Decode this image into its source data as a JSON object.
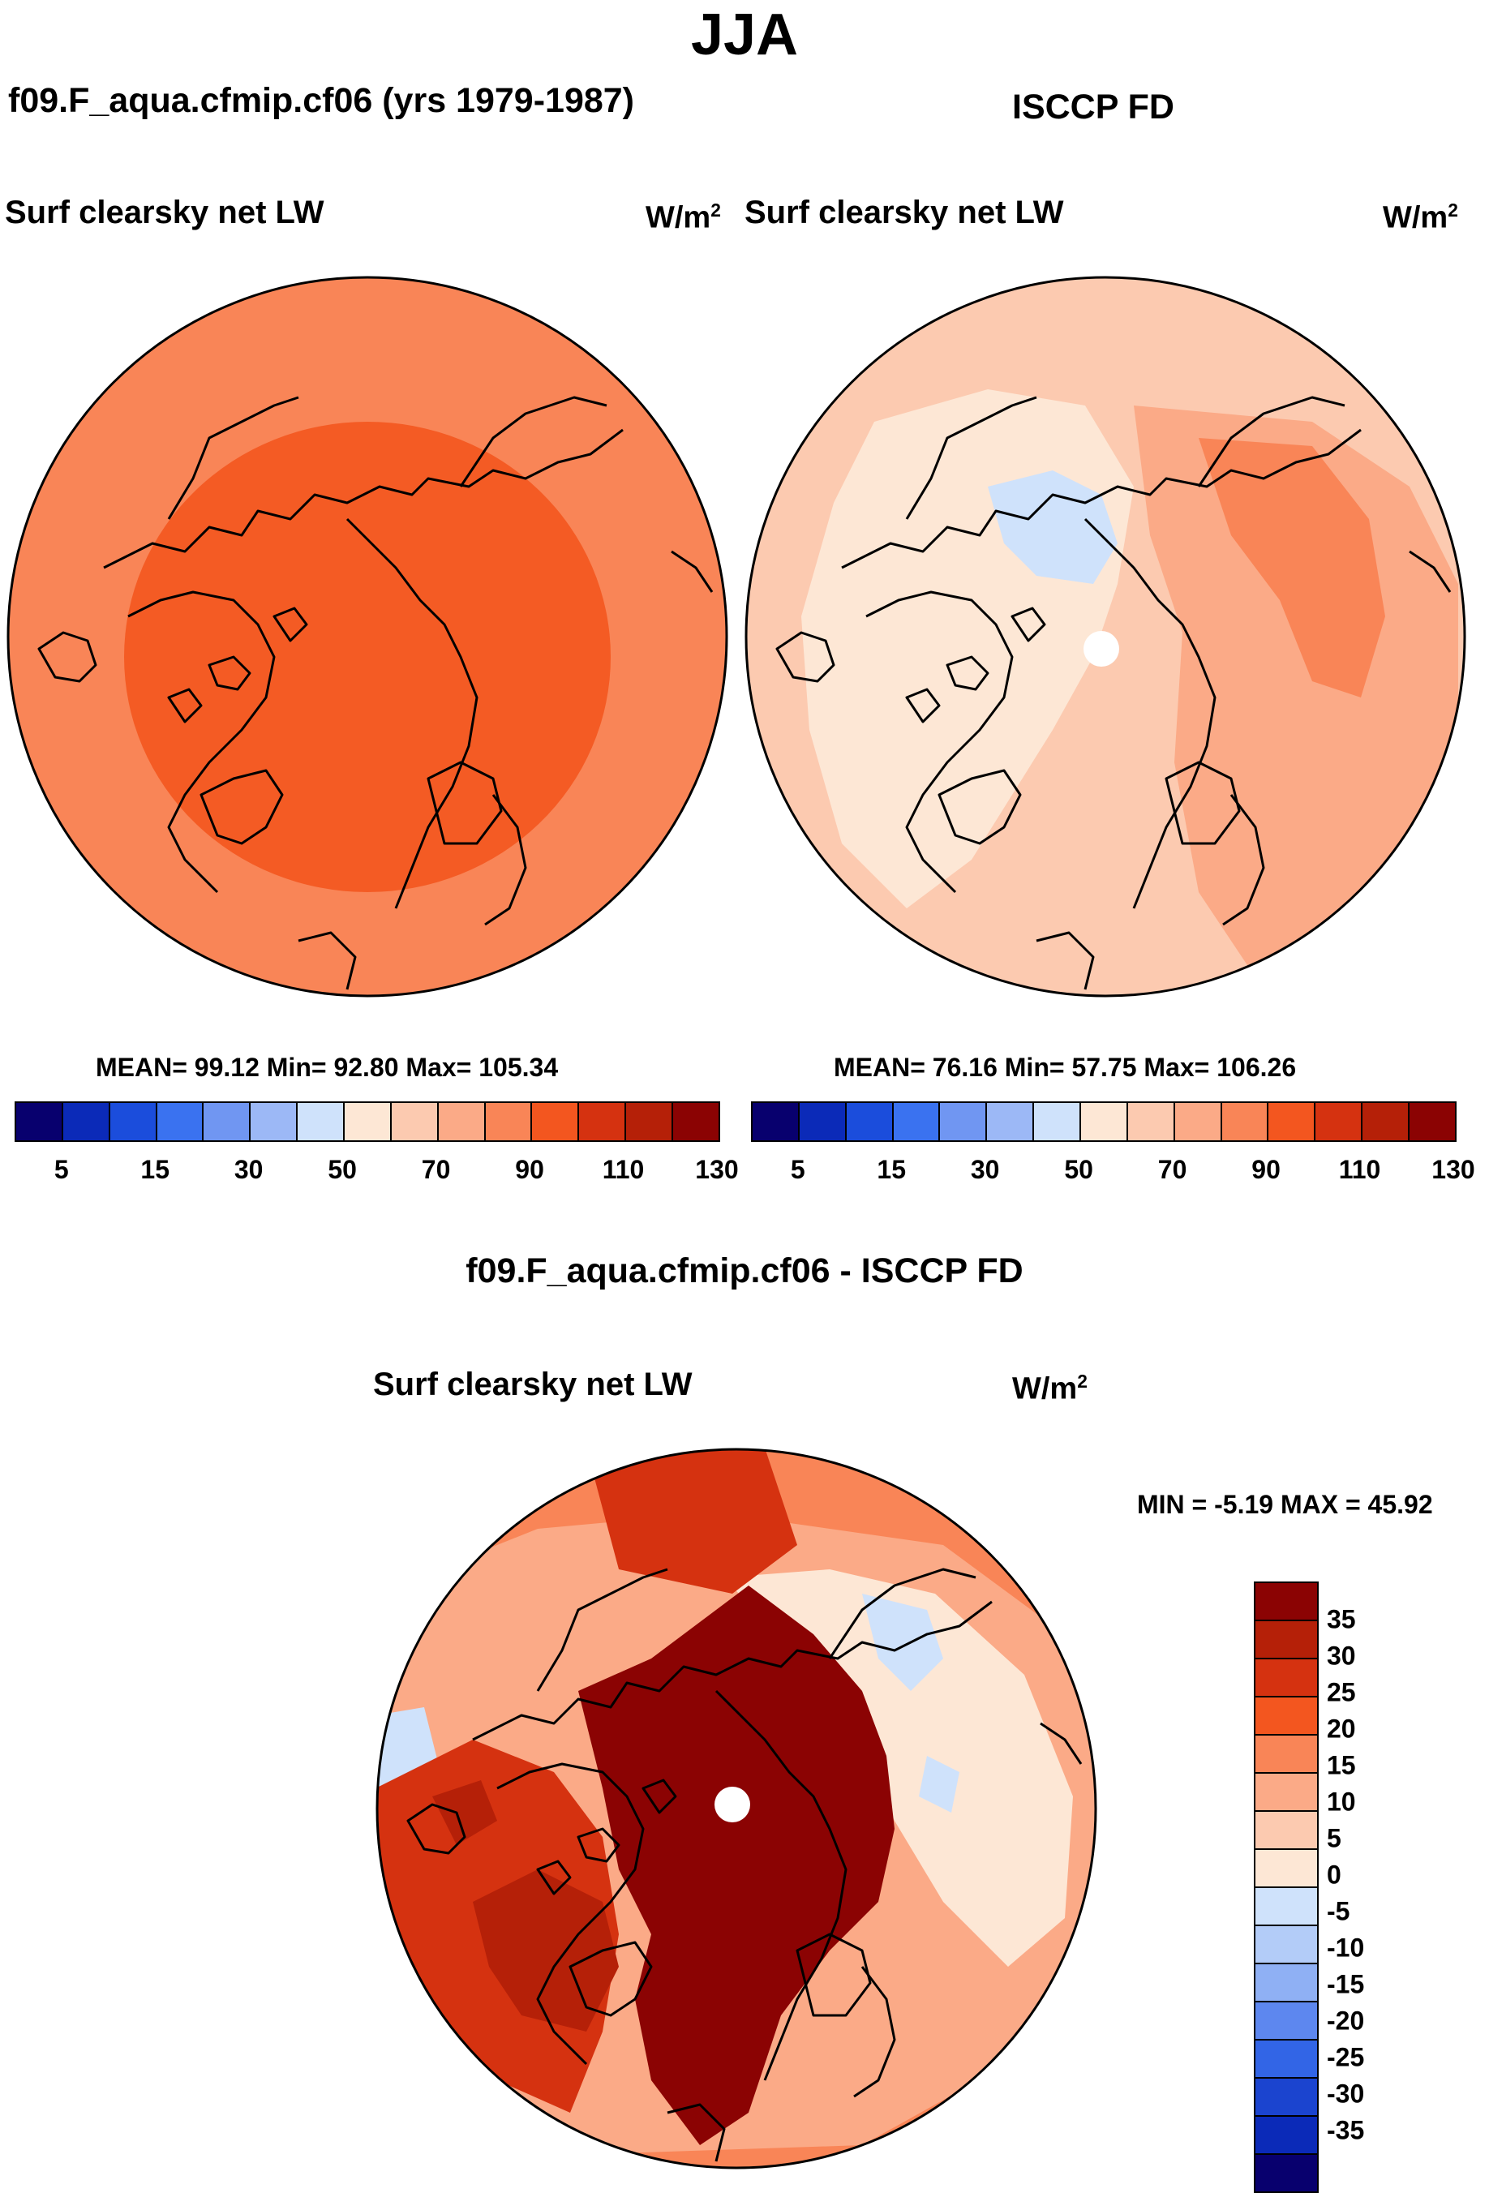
{
  "title": "JJA",
  "left_panel": {
    "header": "f09.F_aqua.cfmip.cf06 (yrs 1979-1987)",
    "field": "Surf clearsky net LW",
    "units": "W/m",
    "units_sup": "2",
    "stats": "MEAN=  99.12  Min=  92.80  Max= 105.34"
  },
  "right_panel": {
    "header": "ISCCP FD",
    "field": "Surf clearsky net LW",
    "units": "W/m",
    "units_sup": "2",
    "stats": "MEAN=  76.16  Min=  57.75  Max= 106.26"
  },
  "diff_panel": {
    "header": "f09.F_aqua.cfmip.cf06 - ISCCP FD",
    "field": "Surf clearsky net LW",
    "units": "W/m",
    "units_sup": "2",
    "minmax": "MIN =  -5.19 MAX =  45.92"
  },
  "colorbar_abs": {
    "colors": [
      "#08006e",
      "#0b2ab8",
      "#1b4ddc",
      "#3a72f0",
      "#7096f2",
      "#9cb8f6",
      "#cfe2fb",
      "#fde7d5",
      "#fccab0",
      "#fbaa87",
      "#f98557",
      "#f3561f",
      "#d53210",
      "#b52008",
      "#8b0303"
    ],
    "labels": [
      "5",
      "15",
      "30",
      "50",
      "70",
      "90",
      "110",
      "130"
    ]
  },
  "colorbar_diff": {
    "colors": [
      "#8b0303",
      "#b52008",
      "#d53210",
      "#f3561f",
      "#f98557",
      "#fbaa87",
      "#fccab0",
      "#fde7d5",
      "#cfe2fb",
      "#b3ccf8",
      "#8fb0f4",
      "#5d87ef",
      "#3265e6",
      "#1b44cf",
      "#0b2ab8",
      "#08006e"
    ],
    "labels": [
      "35",
      "30",
      "25",
      "20",
      "15",
      "10",
      "5",
      "0",
      "-5",
      "-10",
      "-15",
      "-20",
      "-25",
      "-30",
      "-35"
    ]
  },
  "maps": [
    {
      "name": "model-map",
      "background": "#f98557",
      "regions": [
        {
          "fill": "#f3561f",
          "opacity": 0.9,
          "shape": "inner-disk"
        }
      ]
    },
    {
      "name": "obs-map",
      "background": "#fccab0",
      "regions": [
        {
          "fill": "#fde7d5",
          "shape": "arctic"
        },
        {
          "fill": "#cfe2fb",
          "shape": "pole-blue"
        },
        {
          "fill": "#fbaa87",
          "shape": "siberia"
        },
        {
          "fill": "#f98557",
          "shape": "siberia-core"
        }
      ]
    },
    {
      "name": "diff-map",
      "background": "#f98557",
      "regions": [
        {
          "fill": "#fbaa87",
          "shape": "ring"
        },
        {
          "fill": "#fde7d5",
          "shape": "pacific"
        },
        {
          "fill": "#cfe2fb",
          "shape": "pacific-blue"
        },
        {
          "fill": "#d53210",
          "shape": "north-atlantic"
        },
        {
          "fill": "#b52008",
          "shape": "greenland"
        },
        {
          "fill": "#8b0303",
          "shape": "arctic-core"
        }
      ]
    }
  ]
}
